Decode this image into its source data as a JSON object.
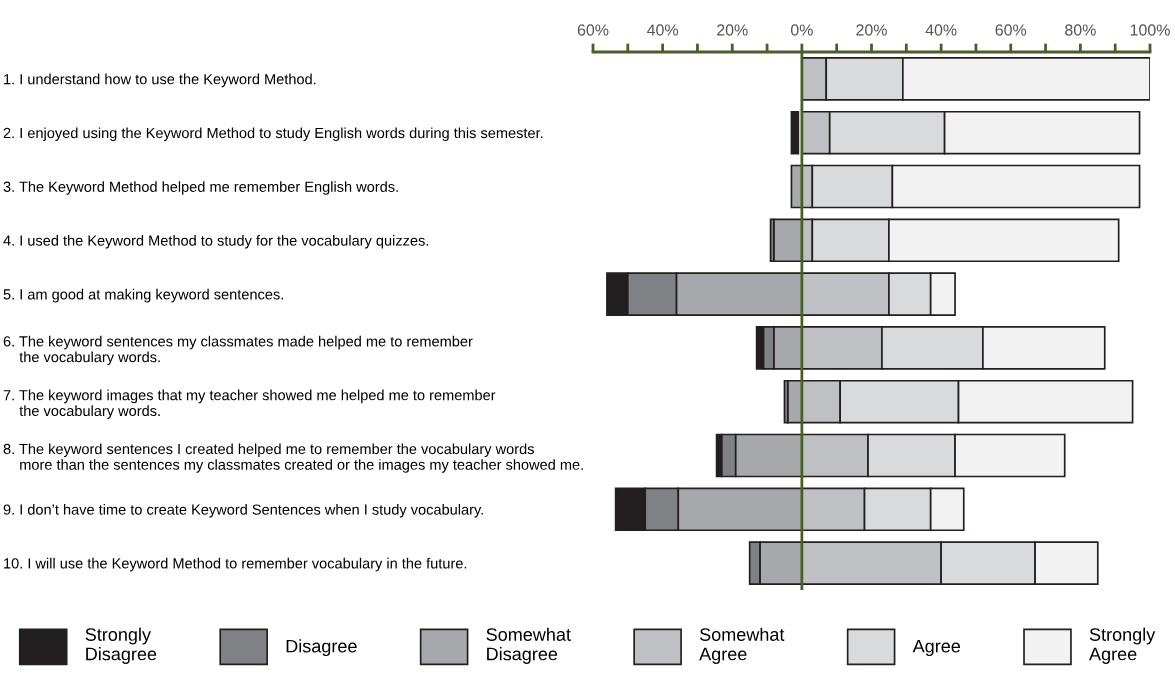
{
  "chart_data": {
    "type": "bar",
    "orientation": "horizontal",
    "categories": [
      "1. I understand how to use the Keyword Method.",
      "2. I enjoyed using the Keyword Method to study English words during this semester.",
      "3. The Keyword Method helped me remember English words.",
      "4. I used the Keyword Method to study for the vocabulary quizzes.",
      "5. I am good at making keyword sentences.",
      "6. The keyword sentences my classmates made helped me to remember\n    the vocabulary words.",
      "7. The keyword images that my teacher showed me helped me to remember\n    the vocabulary words.",
      "8. The keyword sentences I created helped me to remember the vocabulary words\n    more than the sentences my classmates created or the images my teacher showed me.",
      "9. I don’t have time to create Keyword Sentences when I study vocabulary.",
      "10. I will use the Keyword Method to remember vocabulary in the future."
    ],
    "series": [
      {
        "name": "Strongly\nDisagree",
        "color": "#231f20",
        "base": [
          null,
          -3,
          null,
          null,
          -56,
          -13,
          null,
          -24.5,
          -53.5,
          null
        ],
        "values": [
          null,
          2,
          null,
          null,
          6,
          2,
          null,
          1.5,
          8.5,
          null
        ]
      },
      {
        "name": "Disagree",
        "color": "#808184",
        "base": [
          null,
          null,
          null,
          -9,
          -50,
          -11,
          -5,
          -23,
          -45,
          -15
        ],
        "values": [
          null,
          null,
          null,
          1,
          14,
          3,
          1,
          4,
          9.5,
          3
        ]
      },
      {
        "name": "Somewhat\nDisagree",
        "color": "#a7a8ab",
        "base": [
          null,
          null,
          -3,
          -8,
          -36,
          -8,
          -4,
          -19,
          -35.5,
          -12
        ],
        "values": [
          null,
          null,
          3,
          8,
          36,
          8,
          4,
          19,
          35.5,
          12
        ]
      },
      {
        "name": "Somewhat\nAgree",
        "color": "#bfc0c3",
        "base": [
          0,
          0,
          0,
          0,
          0,
          0,
          0,
          0,
          0,
          0
        ],
        "values": [
          7,
          8,
          3,
          3,
          25,
          23,
          11,
          19,
          18,
          40
        ]
      },
      {
        "name": "Agree",
        "color": "#d9dadc",
        "base": [
          7,
          8,
          3,
          3,
          25,
          23,
          11,
          19,
          18,
          40
        ],
        "values": [
          22,
          33,
          23,
          22,
          12,
          29,
          34,
          25,
          19,
          27
        ]
      },
      {
        "name": "Strongly\nAgree",
        "color": "#f2f2f2",
        "base": [
          29,
          41,
          26,
          25,
          37,
          52,
          45,
          44,
          37,
          67
        ],
        "values": [
          71,
          56,
          71,
          66,
          7,
          35,
          50,
          31.5,
          9.5,
          18
        ]
      }
    ],
    "xlim": [
      -60,
      100
    ],
    "xticks": [
      {
        "value": -60,
        "label": "60%"
      },
      {
        "value": -50,
        "label": null
      },
      {
        "value": -40,
        "label": "40%"
      },
      {
        "value": -30,
        "label": null
      },
      {
        "value": -20,
        "label": "20%"
      },
      {
        "value": -10,
        "label": null
      },
      {
        "value": 0,
        "label": "0%"
      },
      {
        "value": 10,
        "label": null
      },
      {
        "value": 20,
        "label": "20%"
      },
      {
        "value": 30,
        "label": null
      },
      {
        "value": 40,
        "label": "40%"
      },
      {
        "value": 50,
        "label": null
      },
      {
        "value": 60,
        "label": "60%"
      },
      {
        "value": 70,
        "label": null
      },
      {
        "value": 80,
        "label": "80%"
      },
      {
        "value": 90,
        "label": null
      },
      {
        "value": 100,
        "label": "100%"
      }
    ],
    "ref_lines": [
      {
        "axis": "x",
        "value": 0,
        "label": null,
        "color": "#4a5e2a"
      }
    ],
    "grid": false,
    "legend": "bottom"
  }
}
